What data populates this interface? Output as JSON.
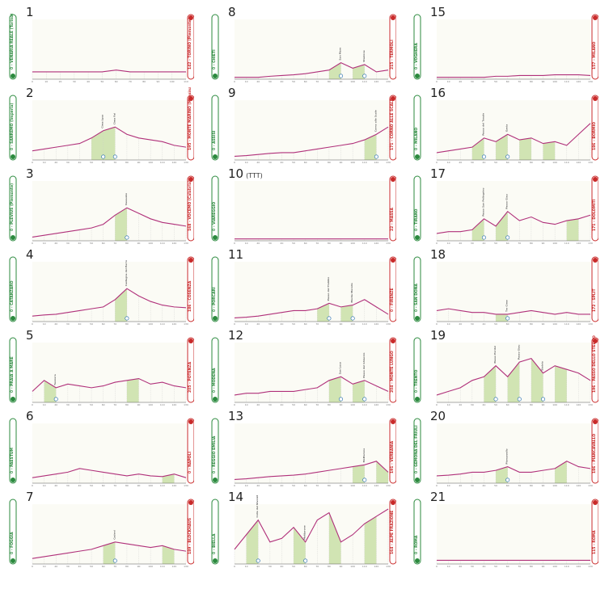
{
  "chart_data": [
    {
      "type": "area",
      "stage": "1",
      "note": "",
      "start": "0 - VENARIA REALE (Torino)",
      "finish": "142 - TORINO (Piemonte)",
      "elev": [
        20,
        20,
        20,
        20,
        20,
        20,
        25,
        20,
        20,
        20,
        20,
        20
      ],
      "climbs": [],
      "cols": []
    },
    {
      "type": "area",
      "stage": "2",
      "note": "",
      "start": "0 - SANREMO (Imperia)",
      "finish": "195 - MONTE MARINO (Messina / Palermo)",
      "elev": [
        25,
        30,
        35,
        40,
        45,
        60,
        80,
        90,
        70,
        60,
        55,
        50,
        40,
        35
      ],
      "climbs": [
        [
          "Cima Lysa",
          40
        ],
        [
          "Cima Fai",
          55
        ]
      ],
      "cols": [
        6,
        7
      ]
    },
    {
      "type": "area",
      "stage": "3",
      "note": "",
      "start": "0 - PLEVIUS (Piemonte)",
      "finish": "168 - VOCEMO (Calabria)",
      "elev": [
        10,
        15,
        20,
        25,
        30,
        35,
        45,
        70,
        90,
        75,
        60,
        50,
        45,
        40
      ],
      "climbs": [
        [
          "Vassuzzo",
          40
        ]
      ],
      "cols": [
        8
      ]
    },
    {
      "type": "area",
      "stage": "4",
      "note": "",
      "start": "0 - CATANZARO",
      "finish": "186 - COSENZA",
      "elev": [
        15,
        18,
        20,
        25,
        30,
        35,
        40,
        60,
        90,
        70,
        55,
        45,
        40,
        38
      ],
      "climbs": [
        [
          "Castagna del Perro",
          60
        ]
      ],
      "cols": [
        8
      ]
    },
    {
      "type": "area",
      "stage": "5",
      "note": "",
      "start": "0 - PRAIA A MARE",
      "finish": "205 - POTENZA",
      "elev": [
        30,
        60,
        40,
        50,
        45,
        40,
        45,
        55,
        60,
        65,
        50,
        55,
        45,
        40
      ],
      "climbs": [
        [
          "Tuonora",
          45
        ]
      ],
      "cols": [
        2,
        9
      ]
    },
    {
      "type": "area",
      "stage": "6",
      "note": "",
      "start": "0 - PAESTUM",
      "finish": "0 - NAPOLI",
      "elev": [
        15,
        20,
        25,
        30,
        40,
        35,
        30,
        25,
        20,
        25,
        20,
        18,
        25,
        15
      ],
      "climbs": [],
      "cols": [
        12
      ]
    },
    {
      "type": "area",
      "stage": "7",
      "note": "",
      "start": "0 - FOGGIA",
      "finish": "189 - BLOCKHAUS",
      "elev": [
        15,
        20,
        25,
        30,
        35,
        40,
        50,
        60,
        55,
        50,
        45,
        50,
        40,
        35
      ],
      "climbs": [
        [
          "Cadeni",
          40
        ]
      ],
      "cols": [
        7,
        12
      ]
    },
    {
      "type": "area",
      "stage": "8",
      "note": "",
      "start": "0 - CHIETI",
      "finish": "215 - TERMOLI",
      "elev": [
        5,
        5,
        5,
        8,
        10,
        12,
        15,
        20,
        25,
        45,
        30,
        40,
        20,
        25
      ],
      "climbs": [
        [
          "San Mare",
          50
        ],
        [
          "Stazione",
          40
        ]
      ],
      "cols": [
        9,
        11
      ]
    },
    {
      "type": "area",
      "stage": "9",
      "note": "",
      "start": "0 - ASSISI",
      "finish": "171 - CORNO ALLE SCALE",
      "elev": [
        10,
        12,
        15,
        18,
        20,
        20,
        25,
        30,
        35,
        40,
        45,
        55,
        70,
        90
      ],
      "climbs": [
        [
          "Corno alle Scale",
          80
        ]
      ],
      "cols": [
        12
      ]
    },
    {
      "type": "area",
      "stage": "10",
      "note": "(TTT)",
      "start": "0 - VIAREGGIO",
      "finish": "22 - MASSA",
      "elev": [
        5,
        5,
        5,
        5,
        5,
        5,
        5,
        5,
        5,
        5,
        5,
        5,
        5,
        5
      ],
      "climbs": [],
      "cols": []
    },
    {
      "type": "area",
      "stage": "11",
      "note": "",
      "start": "0 - PORCARI",
      "finish": "0 - FIRENZE",
      "elev": [
        10,
        12,
        15,
        20,
        25,
        30,
        30,
        35,
        50,
        40,
        45,
        60,
        40,
        20
      ],
      "climbs": [
        [
          "Passo del Trebbio",
          45
        ],
        [
          "Monte Morello",
          40
        ]
      ],
      "cols": [
        8,
        10
      ]
    },
    {
      "type": "area",
      "stage": "12",
      "note": "",
      "start": "0 - MODENA",
      "finish": "204 - MONTE LUNGO",
      "elev": [
        20,
        25,
        25,
        30,
        30,
        30,
        35,
        40,
        60,
        70,
        50,
        60,
        45,
        30
      ],
      "climbs": [
        [
          "San Luca",
          50
        ],
        [
          "Passo del Ghiaccio",
          45
        ]
      ],
      "cols": [
        9,
        11
      ]
    },
    {
      "type": "area",
      "stage": "13",
      "note": "",
      "start": "0 - REGGIO EMILIA",
      "finish": "191 - VERBANIA",
      "elev": [
        10,
        12,
        15,
        18,
        20,
        22,
        25,
        30,
        35,
        40,
        45,
        50,
        60,
        30
      ],
      "climbs": [
        [
          "Mottarone",
          35
        ]
      ],
      "cols": [
        11,
        13
      ]
    },
    {
      "type": "area",
      "stage": "14",
      "note": "",
      "start": "0 - BIELLA",
      "finish": "164 - ALPE FRAZIONE",
      "elev": [
        40,
        80,
        120,
        60,
        70,
        100,
        60,
        120,
        140,
        60,
        80,
        110,
        130,
        150
      ],
      "climbs": [
        [
          "Colle del Nivolet",
          60
        ],
        [
          "Mottarone",
          50
        ]
      ],
      "cols": [
        2,
        6,
        9,
        12
      ]
    },
    {
      "type": "area",
      "stage": "15",
      "note": "",
      "start": "0 - VOGHERA",
      "finish": "157 - MILANO",
      "elev": [
        5,
        5,
        5,
        5,
        5,
        8,
        8,
        10,
        10,
        10,
        12,
        12,
        12,
        10
      ],
      "climbs": [],
      "cols": []
    },
    {
      "type": "area",
      "stage": "16",
      "note": "",
      "start": "0 - MILANO",
      "finish": "186 - BORMIO",
      "elev": [
        20,
        25,
        30,
        35,
        60,
        50,
        70,
        55,
        60,
        45,
        50,
        40,
        70,
        100
      ],
      "climbs": [
        [
          "Passo del Tonale",
          45
        ],
        [
          "Gavia",
          40
        ]
      ],
      "cols": [
        4,
        6,
        8,
        10
      ]
    },
    {
      "type": "area",
      "stage": "17",
      "note": "",
      "start": "0 - TIRANO",
      "finish": "171 - DOLOMITI",
      "elev": [
        20,
        25,
        25,
        30,
        60,
        40,
        80,
        55,
        65,
        50,
        45,
        55,
        60,
        70
      ],
      "climbs": [
        [
          "Passo San Pellegrino",
          45
        ],
        [
          "Passo Giau",
          40
        ]
      ],
      "cols": [
        4,
        6,
        12
      ]
    },
    {
      "type": "area",
      "stage": "18",
      "note": "",
      "start": "0 - SAN DONÀ",
      "finish": "172 - SPLIT",
      "elev": [
        30,
        35,
        30,
        25,
        25,
        20,
        20,
        25,
        30,
        25,
        20,
        25,
        20,
        20
      ],
      "climbs": [
        [
          "Tre Cime",
          40
        ]
      ],
      "cols": [
        6
      ]
    },
    {
      "type": "area",
      "stage": "19",
      "note": "",
      "start": "0 - TRENTO",
      "finish": "196 - PASSO DELLO STELVIO",
      "elev": [
        20,
        30,
        40,
        60,
        70,
        100,
        70,
        110,
        120,
        80,
        100,
        90,
        80,
        60
      ],
      "climbs": [
        [
          "Passo Pordoi",
          50
        ],
        [
          "Passo Giau",
          45
        ],
        [
          "Stelvio",
          40
        ]
      ],
      "cols": [
        5,
        7,
        9,
        11
      ]
    },
    {
      "type": "area",
      "stage": "20",
      "note": "",
      "start": "0 - GEMONA DEL FRIULI",
      "finish": "186 - PIANCAVALLO",
      "elev": [
        20,
        22,
        25,
        30,
        30,
        35,
        45,
        30,
        30,
        35,
        40,
        60,
        45,
        40
      ],
      "climbs": [
        [
          "Piancavallo",
          40
        ]
      ],
      "cols": [
        6,
        11
      ]
    },
    {
      "type": "area",
      "stage": "21",
      "note": "",
      "start": "0 - ROMA",
      "finish": "115 - ROMA",
      "elev": [
        10,
        10,
        10,
        10,
        10,
        10,
        10,
        10,
        10,
        10,
        10,
        10,
        10,
        10
      ],
      "climbs": [],
      "cols": []
    }
  ]
}
